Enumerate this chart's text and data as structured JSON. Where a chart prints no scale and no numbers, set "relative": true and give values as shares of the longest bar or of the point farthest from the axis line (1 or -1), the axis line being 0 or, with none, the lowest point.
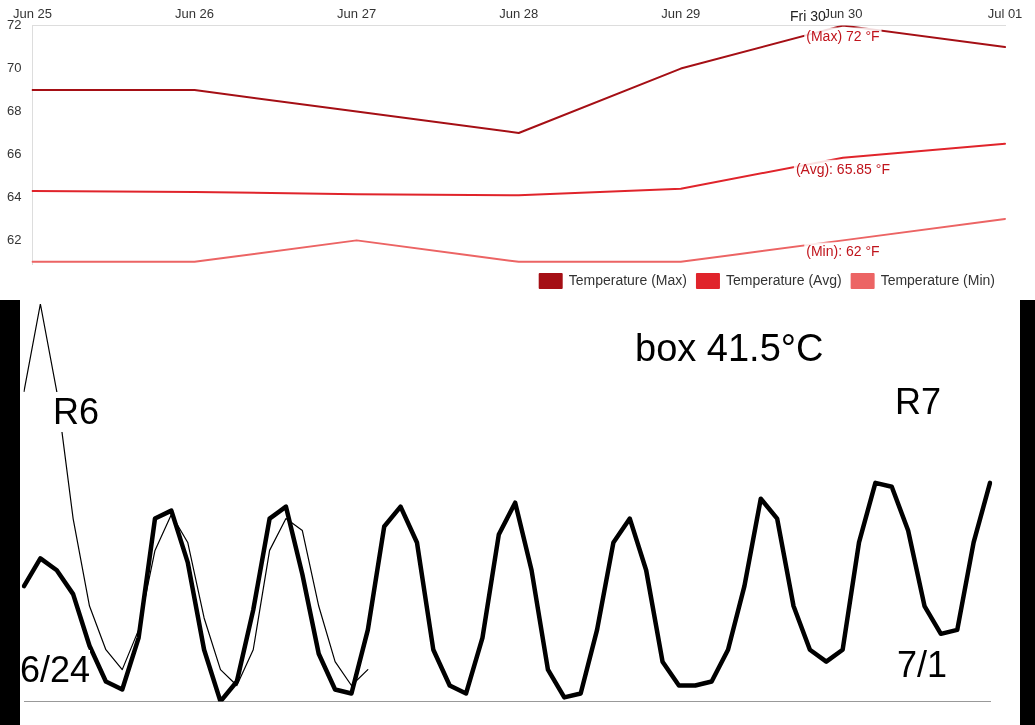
{
  "chart_data": [
    {
      "type": "line",
      "categories": [
        "Jun 25",
        "Jun 26",
        "Jun 27",
        "Jun 28",
        "Jun 29",
        "Jun 30",
        "Jul 01"
      ],
      "series": [
        {
          "name": "Temperature (Max)",
          "color": "#a50f15",
          "values": [
            69,
            69,
            68,
            67,
            70,
            72,
            71
          ]
        },
        {
          "name": "Temperature (Avg)",
          "color": "#e0242b",
          "values": [
            64.3,
            64.25,
            64.15,
            64.1,
            64.4,
            65.85,
            66.5
          ]
        },
        {
          "name": "Temperature (Min)",
          "color": "#ec6464",
          "values": [
            61,
            61,
            62,
            61,
            61,
            62,
            63
          ]
        }
      ],
      "ylim": [
        60.9,
        72
      ],
      "yticks": [
        62,
        64,
        66,
        68,
        70,
        72
      ],
      "legend": "bottom right",
      "marker": "none",
      "grid": false,
      "annotations": [
        "Fri 30",
        {
          "text": "(Max) 72 °F",
          "x": "Jun 30",
          "y": 72
        },
        {
          "text": "(Avg): 65.85 °F",
          "x": "Jun 30",
          "y": 65.85
        },
        {
          "text": "(Min): 62 °F",
          "x": "Jun 30",
          "y": 62
        }
      ]
    },
    {
      "type": "line",
      "relative": true,
      "categories": [
        null,
        null,
        null,
        null,
        null,
        null,
        null,
        null,
        null,
        null,
        null,
        null,
        null,
        null,
        null,
        null,
        null,
        null,
        null,
        null,
        null,
        null,
        null,
        null,
        null,
        null,
        null,
        null,
        null,
        null,
        null,
        null,
        null,
        null,
        null,
        null,
        null,
        null,
        null,
        null,
        null,
        null,
        null,
        null,
        null,
        null,
        null,
        null,
        null,
        null,
        null,
        null,
        null,
        null,
        null,
        null,
        null,
        null,
        null,
        null
      ],
      "series": [
        {
          "color": "#000000",
          "values": [
            0.29,
            0.36,
            0.33,
            0.27,
            0.14,
            0.05,
            0.03,
            0.16,
            0.46,
            0.48,
            0.35,
            0.13,
            0,
            0.05,
            0.23,
            0.46,
            0.49,
            0.32,
            0.12,
            0.03,
            0.02,
            0.18,
            0.44,
            0.49,
            0.4,
            0.13,
            0.04,
            0.02,
            0.16,
            0.42,
            0.5,
            0.33,
            0.08,
            0.01,
            0.02,
            0.18,
            0.4,
            0.46,
            0.33,
            0.1,
            0.04,
            0.04,
            0.05,
            0.13,
            0.29,
            0.51,
            0.46,
            0.24,
            0.13,
            0.1,
            0.13,
            0.4,
            0.55,
            0.54,
            0.43,
            0.24,
            0.17,
            0.18,
            0.4,
            0.55
          ]
        },
        {
          "color": "#000000",
          "values": [
            0.78,
            1,
            0.78,
            0.46,
            0.24,
            0.13,
            0.08,
            0.18,
            0.38,
            0.47,
            0.4,
            0.21,
            0.08,
            0.04,
            0.13,
            0.38,
            0.46,
            0.43,
            0.24,
            0.1,
            0.04,
            0.08,
            null,
            null,
            null,
            null,
            null,
            null,
            null,
            null,
            null,
            null,
            null,
            null,
            null,
            null,
            null,
            null,
            null,
            null,
            null,
            null,
            null,
            null,
            null,
            null,
            null,
            null,
            null,
            null,
            null,
            null,
            null,
            null,
            null,
            null,
            null,
            null,
            null,
            null
          ]
        }
      ],
      "legend": false,
      "marker": "none",
      "grid": false,
      "annotations": [
        "box 41.5°C",
        "R6",
        "R7",
        "6/24",
        "7/1"
      ]
    }
  ]
}
